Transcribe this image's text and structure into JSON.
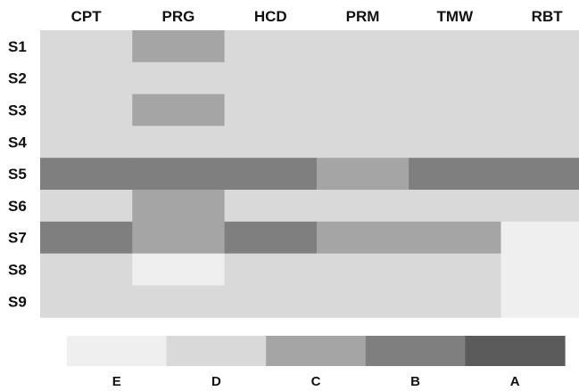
{
  "chart_data": {
    "type": "heatmap",
    "columns": [
      "CPT",
      "PRG",
      "HCD",
      "PRM",
      "TMW",
      "RBT"
    ],
    "rows": [
      "S1",
      "S2",
      "S3",
      "S4",
      "S5",
      "S6",
      "S7",
      "S8",
      "S9"
    ],
    "levels": [
      "E",
      "D",
      "C",
      "B",
      "A"
    ],
    "level_colors": {
      "E": "#efefef",
      "D": "#d9d9d9",
      "C": "#a5a5a5",
      "B": "#7f7f7f",
      "A": "#5b5b5b"
    },
    "values": [
      [
        "D",
        "C",
        "D",
        "D",
        "D",
        "D"
      ],
      [
        "D",
        "D",
        "D",
        "D",
        "D",
        "D"
      ],
      [
        "D",
        "C",
        "D",
        "D",
        "D",
        "D"
      ],
      [
        "D",
        "D",
        "D",
        "D",
        "D",
        "D"
      ],
      [
        "B",
        "B",
        "B",
        "C",
        "B",
        "B"
      ],
      [
        "D",
        "C",
        "D",
        "D",
        "D",
        "D"
      ],
      [
        "B",
        "C",
        "B",
        "C",
        "C",
        "E"
      ],
      [
        "D",
        "E",
        "D",
        "D",
        "D",
        "E"
      ],
      [
        "D",
        "D",
        "D",
        "D",
        "D",
        "E"
      ]
    ],
    "legend": [
      "E",
      "D",
      "C",
      "B",
      "A"
    ],
    "legend_placement": "bottom",
    "grid": false
  }
}
